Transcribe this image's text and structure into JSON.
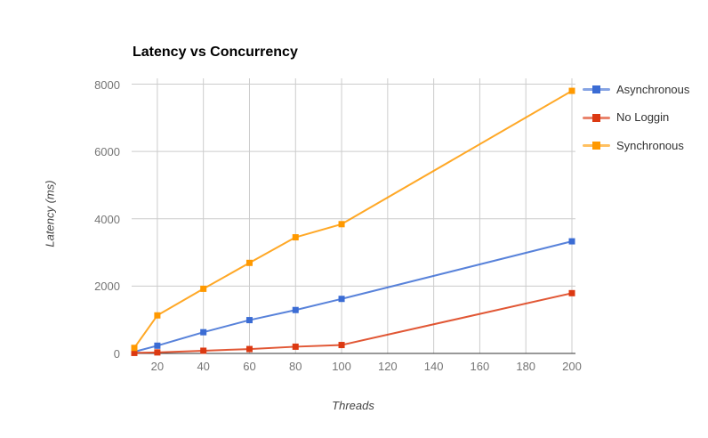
{
  "chart_data": {
    "type": "line",
    "title": "Latency vs Concurrency",
    "xlabel": "Threads",
    "ylabel": "Latency (ms)",
    "x": [
      10,
      20,
      40,
      60,
      80,
      100,
      200
    ],
    "series": [
      {
        "name": "Asynchronous",
        "color": "#3B6CD4",
        "values": [
          50,
          230,
          630,
          990,
          1290,
          1620,
          3330
        ]
      },
      {
        "name": "No Loggin",
        "color": "#DC3912",
        "values": [
          15,
          30,
          80,
          130,
          200,
          250,
          1790
        ]
      },
      {
        "name": "Synchronous",
        "color": "#FF9900",
        "values": [
          165,
          1130,
          1920,
          2690,
          3450,
          3840,
          7800
        ]
      }
    ],
    "xlim": [
      10,
      200
    ],
    "ylim": [
      0,
      8000
    ],
    "x_ticks": [
      20,
      40,
      60,
      80,
      100,
      120,
      140,
      160,
      180,
      200
    ],
    "y_ticks": [
      0,
      2000,
      4000,
      6000,
      8000
    ],
    "grid": true,
    "legend_position": "right",
    "marker_shape": "square",
    "colors": {
      "background": "#ffffff",
      "grid": "#cccccc",
      "baseline": "#333333",
      "tick_label": "#757575",
      "axis_title": "#434343",
      "title": "#000000",
      "legend_text": "#333333"
    }
  }
}
